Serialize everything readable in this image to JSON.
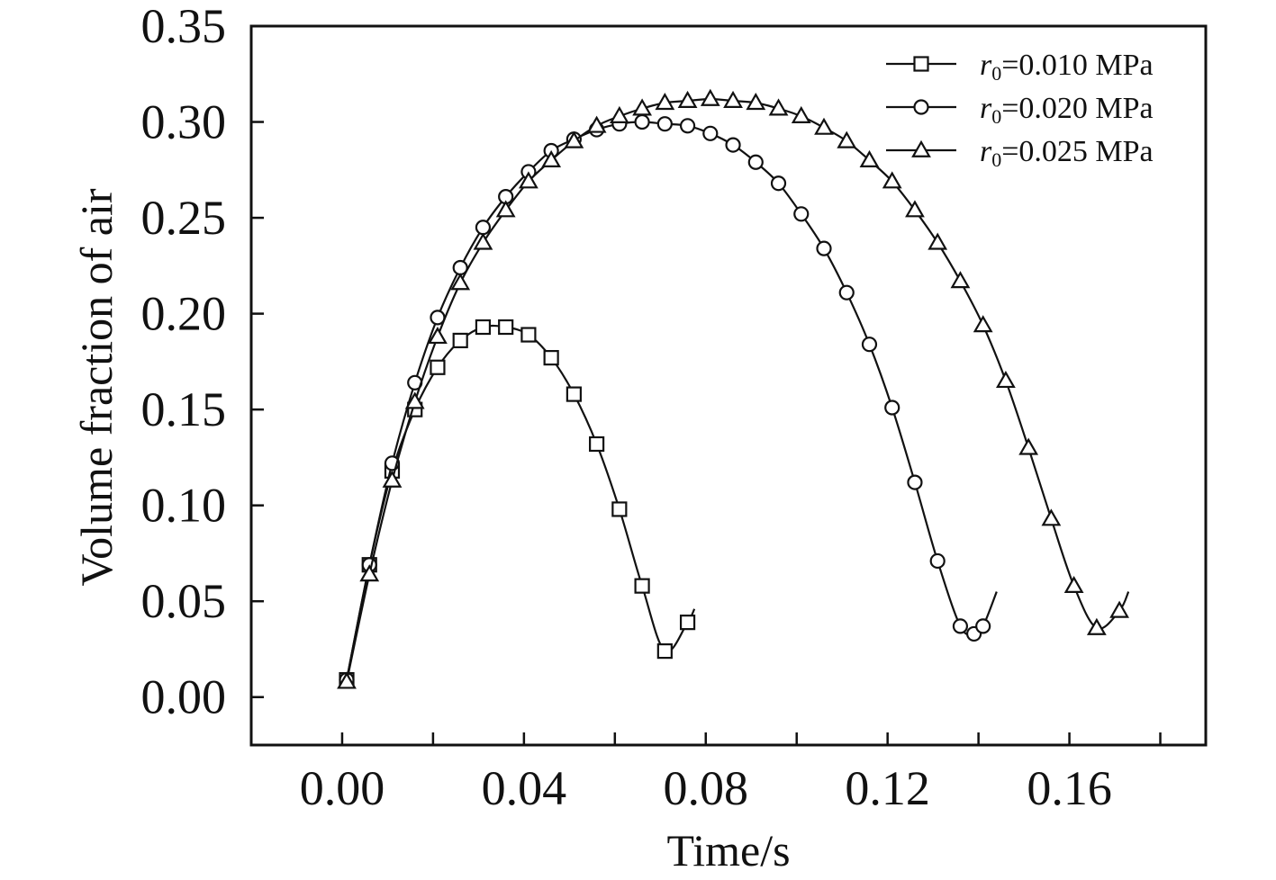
{
  "chart_data": {
    "type": "line",
    "xlabel": "Time/s",
    "ylabel": "Volume fraction of air",
    "xlim": [
      -0.02,
      0.19
    ],
    "ylim": [
      -0.025,
      0.35
    ],
    "xticks": [
      "0.00",
      "0.04",
      "0.08",
      "0.12",
      "0.16"
    ],
    "yticks": [
      "0.00",
      "0.05",
      "0.10",
      "0.15",
      "0.20",
      "0.25",
      "0.30",
      "0.35"
    ],
    "grid": false,
    "legend_position": "top-right",
    "series": [
      {
        "name": "r0=0.010 MPa",
        "legend_var": "r",
        "legend_sub": "0",
        "legend_rest": "=0.010 MPa",
        "marker": "square",
        "x": [
          0.001,
          0.006,
          0.011,
          0.016,
          0.021,
          0.026,
          0.031,
          0.036,
          0.041,
          0.046,
          0.051,
          0.056,
          0.061,
          0.066,
          0.071,
          0.076
        ],
        "y": [
          0.009,
          0.069,
          0.118,
          0.15,
          0.172,
          0.186,
          0.193,
          0.193,
          0.189,
          0.177,
          0.158,
          0.132,
          0.098,
          0.058,
          0.024,
          0.039
        ],
        "line_end": [
          0.0775,
          0.046
        ]
      },
      {
        "name": "r0=0.020 MPa",
        "legend_var": "r",
        "legend_sub": "0",
        "legend_rest": "=0.020 MPa",
        "marker": "circle",
        "x": [
          0.001,
          0.006,
          0.011,
          0.016,
          0.021,
          0.026,
          0.031,
          0.036,
          0.041,
          0.046,
          0.051,
          0.056,
          0.061,
          0.066,
          0.071,
          0.076,
          0.081,
          0.086,
          0.091,
          0.096,
          0.101,
          0.106,
          0.111,
          0.116,
          0.121,
          0.126,
          0.131,
          0.136,
          0.139,
          0.141
        ],
        "y": [
          0.009,
          0.069,
          0.122,
          0.164,
          0.198,
          0.224,
          0.245,
          0.261,
          0.274,
          0.285,
          0.291,
          0.296,
          0.299,
          0.3,
          0.299,
          0.298,
          0.294,
          0.288,
          0.279,
          0.268,
          0.252,
          0.234,
          0.211,
          0.184,
          0.151,
          0.112,
          0.071,
          0.037,
          0.033,
          0.037
        ],
        "line_end": [
          0.144,
          0.055
        ]
      },
      {
        "name": "r0=0.025 MPa",
        "legend_var": "r",
        "legend_sub": "0",
        "legend_rest": "=0.025 MPa",
        "marker": "triangle",
        "x": [
          0.001,
          0.006,
          0.011,
          0.016,
          0.021,
          0.026,
          0.031,
          0.036,
          0.041,
          0.046,
          0.051,
          0.056,
          0.061,
          0.066,
          0.071,
          0.076,
          0.081,
          0.086,
          0.091,
          0.096,
          0.101,
          0.106,
          0.111,
          0.116,
          0.121,
          0.126,
          0.131,
          0.136,
          0.141,
          0.146,
          0.151,
          0.156,
          0.161,
          0.166,
          0.171
        ],
        "y": [
          0.008,
          0.064,
          0.113,
          0.154,
          0.188,
          0.216,
          0.237,
          0.254,
          0.269,
          0.28,
          0.29,
          0.298,
          0.303,
          0.307,
          0.31,
          0.311,
          0.312,
          0.311,
          0.31,
          0.307,
          0.303,
          0.297,
          0.29,
          0.28,
          0.269,
          0.254,
          0.237,
          0.217,
          0.194,
          0.165,
          0.13,
          0.093,
          0.058,
          0.036,
          0.045
        ],
        "line_end": [
          0.173,
          0.055
        ]
      }
    ]
  }
}
